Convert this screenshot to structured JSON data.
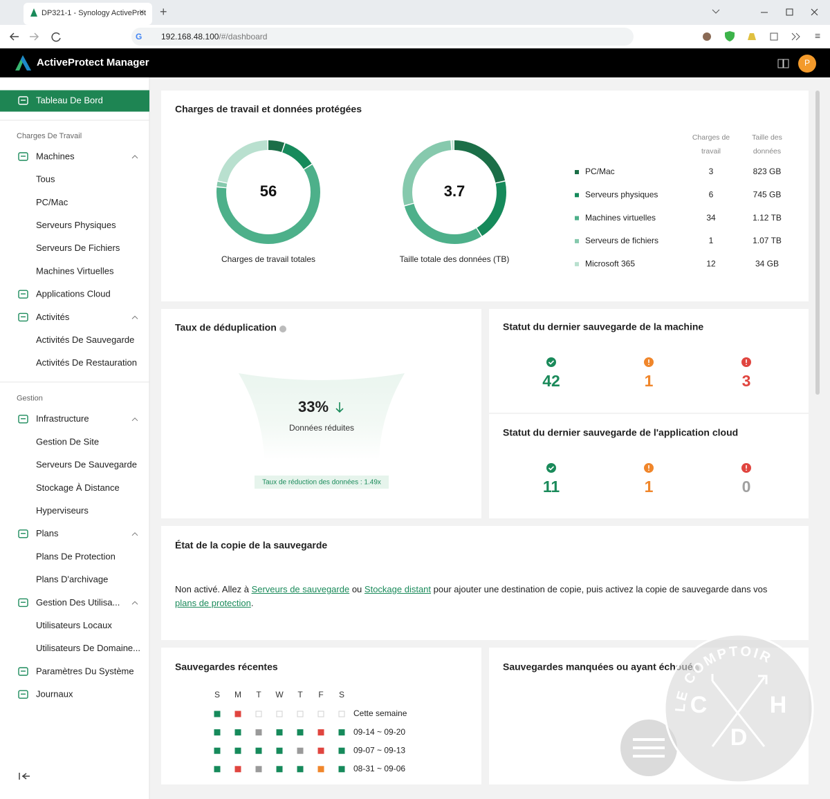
{
  "browser": {
    "tab_title": "DP321-1 - Synology ActiveProt",
    "url_host": "192.168.48.100",
    "url_path": "/#/dashboard"
  },
  "header": {
    "title": "ActiveProtect Manager",
    "avatar": "P"
  },
  "sidebar": {
    "items": [
      {
        "label": "Tableau De Bord",
        "kind": "item",
        "active": true
      },
      {
        "label": "Charges De Travail",
        "kind": "section"
      },
      {
        "label": "Machines",
        "kind": "item",
        "chevron": true
      },
      {
        "label": "Tous",
        "kind": "sub"
      },
      {
        "label": "PC/Mac",
        "kind": "sub"
      },
      {
        "label": "Serveurs Physiques",
        "kind": "sub"
      },
      {
        "label": "Serveurs De Fichiers",
        "kind": "sub"
      },
      {
        "label": "Machines Virtuelles",
        "kind": "sub"
      },
      {
        "label": "Applications Cloud",
        "kind": "item"
      },
      {
        "label": "Activités",
        "kind": "item",
        "chevron": true
      },
      {
        "label": "Activités De Sauvegarde",
        "kind": "sub"
      },
      {
        "label": "Activités De Restauration",
        "kind": "sub"
      },
      {
        "label": "Gestion",
        "kind": "section"
      },
      {
        "label": "Infrastructure",
        "kind": "item",
        "chevron": true
      },
      {
        "label": "Gestion De Site",
        "kind": "sub"
      },
      {
        "label": "Serveurs De Sauvegarde",
        "kind": "sub"
      },
      {
        "label": "Stockage À Distance",
        "kind": "sub"
      },
      {
        "label": "Hyperviseurs",
        "kind": "sub"
      },
      {
        "label": "Plans",
        "kind": "item",
        "chevron": true
      },
      {
        "label": "Plans De Protection",
        "kind": "sub"
      },
      {
        "label": "Plans D'archivage",
        "kind": "sub"
      },
      {
        "label": "Gestion Des Utilisa...",
        "kind": "item",
        "chevron": true
      },
      {
        "label": "Utilisateurs Locaux",
        "kind": "sub"
      },
      {
        "label": "Utilisateurs De Domaine...",
        "kind": "sub"
      },
      {
        "label": "Paramètres Du Système",
        "kind": "item"
      },
      {
        "label": "Journaux",
        "kind": "item"
      }
    ]
  },
  "workloads": {
    "title": "Charges de travail et données protégées",
    "donuts": [
      {
        "center": 56,
        "label": "Charges de travail totales"
      },
      {
        "center": 3.7,
        "label": "Taille totale des données (TB)"
      }
    ],
    "columns": [
      "Charges de travail",
      "Taille des données"
    ],
    "rows": [
      {
        "name": "PC/Mac",
        "count": 3,
        "size": "823 GB",
        "size_tb": 0.823,
        "color": "#1b6e47"
      },
      {
        "name": "Serveurs physiques",
        "count": 6,
        "size": "745 GB",
        "size_tb": 0.745,
        "color": "#168a5b"
      },
      {
        "name": "Machines virtuelles",
        "count": 34,
        "size": "1.12 TB",
        "size_tb": 1.12,
        "color": "#4db08a"
      },
      {
        "name": "Serveurs de fichiers",
        "count": 1,
        "size": "1.07 TB",
        "size_tb": 1.07,
        "color": "#86c9ad"
      },
      {
        "name": "Microsoft 365",
        "count": 12,
        "size": "34 GB",
        "size_tb": 0.034,
        "color": "#b9e0cf"
      }
    ]
  },
  "dedup": {
    "title": "Taux de déduplication",
    "value": "33%",
    "caption": "Données réduites",
    "badge": "Taux de réduction des données : 1.49x"
  },
  "status": [
    {
      "title": "Statut du dernier sauvegarde de la machine",
      "items": [
        {
          "value": 42,
          "icon": "check",
          "color": "#1a8a5a",
          "number_color": "#1a8a5a"
        },
        {
          "value": 1,
          "icon": "warning",
          "color": "#f0862b",
          "number_color": "#f0862b"
        },
        {
          "value": 3,
          "icon": "error",
          "color": "#e0453f",
          "number_color": "#e0453f"
        }
      ]
    },
    {
      "title": "Statut du dernier sauvegarde de l'application cloud",
      "items": [
        {
          "value": 11,
          "icon": "check",
          "color": "#1a8a5a",
          "number_color": "#1a8a5a"
        },
        {
          "value": 1,
          "icon": "warning",
          "color": "#f0862b",
          "number_color": "#f0862b"
        },
        {
          "value": 0,
          "icon": "error",
          "color": "#e0453f",
          "number_color": "#a0a0a0"
        }
      ]
    }
  ],
  "copy": {
    "title": "État de la copie de la sauvegarde",
    "segments": [
      {
        "text": "Non activé. Allez à "
      },
      {
        "link": "Serveurs de sauvegarde"
      },
      {
        "text": " ou "
      },
      {
        "link": "Stockage distant"
      },
      {
        "text": " pour ajouter une destination de copie, puis activez la copie de sauvegarde dans vos "
      },
      {
        "link": "plans de protection"
      },
      {
        "text": "."
      }
    ]
  },
  "recent": {
    "title": "Sauvegardes récentes",
    "days": [
      "S",
      "M",
      "T",
      "W",
      "T",
      "F",
      "S"
    ],
    "rows": [
      {
        "label": "Cette semaine",
        "cells": [
          "#168a5b",
          "#e0453f",
          "#ffffff",
          "#ffffff",
          "#ffffff",
          "#ffffff",
          "#ffffff"
        ]
      },
      {
        "label": "09-14 ~ 09-20",
        "cells": [
          "#168a5b",
          "#168a5b",
          "#9a9a9a",
          "#168a5b",
          "#168a5b",
          "#e0453f",
          "#168a5b"
        ]
      },
      {
        "label": "09-07 ~ 09-13",
        "cells": [
          "#168a5b",
          "#168a5b",
          "#168a5b",
          "#168a5b",
          "#9a9a9a",
          "#e0453f",
          "#168a5b"
        ]
      },
      {
        "label": "08-31 ~ 09-06",
        "cells": [
          "#168a5b",
          "#e0453f",
          "#9a9a9a",
          "#168a5b",
          "#168a5b",
          "#f0862b",
          "#168a5b"
        ]
      }
    ]
  },
  "missed": {
    "title": "Sauvegardes manquées ou ayant échoué"
  },
  "watermark": {
    "top": "LE COMPTOIR",
    "letters": [
      "C",
      "H",
      "D"
    ]
  }
}
